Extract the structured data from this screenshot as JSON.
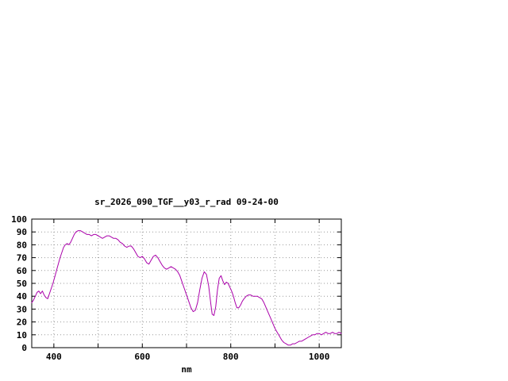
{
  "window": {
    "background": "#ffffff"
  },
  "chart_data": {
    "type": "line",
    "title": "sr_2026_090_TGF__y03_r_rad 09-24-00",
    "xlabel": "nm",
    "ylabel": "",
    "xlim": [
      350,
      1050
    ],
    "ylim": [
      0,
      100
    ],
    "x_tick_label_values": [
      400,
      600,
      800,
      1000
    ],
    "x_grid_values": [
      400,
      500,
      600,
      700,
      800,
      900,
      1000
    ],
    "y_tick_values": [
      0,
      10,
      20,
      30,
      40,
      50,
      60,
      70,
      80,
      90,
      100
    ],
    "grid": true,
    "legend": "none",
    "line_color": "#aa00aa",
    "grid_color": "#999999",
    "border_color": "#000000",
    "series": [
      {
        "name": "sr_2026_090_TGF__y03_r_rad",
        "points": [
          [
            350,
            35
          ],
          [
            354,
            37
          ],
          [
            358,
            40
          ],
          [
            362,
            43
          ],
          [
            366,
            44
          ],
          [
            370,
            42
          ],
          [
            374,
            44
          ],
          [
            378,
            41
          ],
          [
            382,
            39
          ],
          [
            386,
            38
          ],
          [
            390,
            42
          ],
          [
            394,
            46
          ],
          [
            398,
            50
          ],
          [
            402,
            55
          ],
          [
            406,
            60
          ],
          [
            410,
            65
          ],
          [
            414,
            70
          ],
          [
            418,
            74
          ],
          [
            422,
            78
          ],
          [
            426,
            80
          ],
          [
            430,
            81
          ],
          [
            434,
            80
          ],
          [
            438,
            82
          ],
          [
            442,
            85
          ],
          [
            446,
            88
          ],
          [
            450,
            90
          ],
          [
            455,
            91
          ],
          [
            460,
            91
          ],
          [
            465,
            90
          ],
          [
            470,
            89
          ],
          [
            475,
            88
          ],
          [
            480,
            88
          ],
          [
            485,
            87
          ],
          [
            490,
            88
          ],
          [
            495,
            88
          ],
          [
            500,
            87
          ],
          [
            505,
            86
          ],
          [
            510,
            85
          ],
          [
            515,
            86
          ],
          [
            520,
            87
          ],
          [
            525,
            87
          ],
          [
            530,
            86
          ],
          [
            535,
            85
          ],
          [
            540,
            85
          ],
          [
            545,
            84
          ],
          [
            550,
            82
          ],
          [
            555,
            81
          ],
          [
            560,
            79
          ],
          [
            565,
            78
          ],
          [
            570,
            79
          ],
          [
            575,
            79
          ],
          [
            580,
            77
          ],
          [
            585,
            74
          ],
          [
            590,
            71
          ],
          [
            595,
            70
          ],
          [
            600,
            71
          ],
          [
            605,
            69
          ],
          [
            610,
            66
          ],
          [
            615,
            65
          ],
          [
            620,
            68
          ],
          [
            625,
            71
          ],
          [
            630,
            72
          ],
          [
            635,
            70
          ],
          [
            640,
            67
          ],
          [
            645,
            64
          ],
          [
            650,
            62
          ],
          [
            655,
            61
          ],
          [
            660,
            62
          ],
          [
            665,
            63
          ],
          [
            670,
            62
          ],
          [
            675,
            61
          ],
          [
            680,
            59
          ],
          [
            685,
            56
          ],
          [
            690,
            51
          ],
          [
            695,
            46
          ],
          [
            700,
            41
          ],
          [
            705,
            36
          ],
          [
            710,
            31
          ],
          [
            715,
            28
          ],
          [
            720,
            29
          ],
          [
            725,
            35
          ],
          [
            730,
            45
          ],
          [
            735,
            54
          ],
          [
            740,
            59
          ],
          [
            745,
            57
          ],
          [
            750,
            48
          ],
          [
            755,
            34
          ],
          [
            758,
            26
          ],
          [
            762,
            25
          ],
          [
            766,
            32
          ],
          [
            770,
            45
          ],
          [
            774,
            54
          ],
          [
            778,
            56
          ],
          [
            782,
            52
          ],
          [
            786,
            49
          ],
          [
            790,
            51
          ],
          [
            794,
            50
          ],
          [
            798,
            47
          ],
          [
            802,
            44
          ],
          [
            806,
            40
          ],
          [
            810,
            35
          ],
          [
            814,
            31
          ],
          [
            818,
            31
          ],
          [
            822,
            33
          ],
          [
            826,
            36
          ],
          [
            830,
            38
          ],
          [
            835,
            40
          ],
          [
            840,
            41
          ],
          [
            845,
            41
          ],
          [
            850,
            40
          ],
          [
            855,
            40
          ],
          [
            860,
            40
          ],
          [
            865,
            39
          ],
          [
            870,
            38
          ],
          [
            875,
            35
          ],
          [
            880,
            31
          ],
          [
            885,
            27
          ],
          [
            890,
            23
          ],
          [
            895,
            19
          ],
          [
            900,
            15
          ],
          [
            905,
            12
          ],
          [
            910,
            9
          ],
          [
            915,
            6
          ],
          [
            920,
            4
          ],
          [
            925,
            3
          ],
          [
            930,
            2
          ],
          [
            935,
            2
          ],
          [
            940,
            3
          ],
          [
            945,
            3
          ],
          [
            950,
            4
          ],
          [
            955,
            5
          ],
          [
            960,
            5
          ],
          [
            965,
            6
          ],
          [
            970,
            7
          ],
          [
            975,
            8
          ],
          [
            980,
            9
          ],
          [
            985,
            10
          ],
          [
            990,
            10
          ],
          [
            995,
            11
          ],
          [
            1000,
            11
          ],
          [
            1005,
            10
          ],
          [
            1010,
            11
          ],
          [
            1015,
            12
          ],
          [
            1020,
            11
          ],
          [
            1025,
            11
          ],
          [
            1030,
            12
          ],
          [
            1035,
            11
          ],
          [
            1040,
            11
          ],
          [
            1045,
            12
          ],
          [
            1050,
            11
          ]
        ]
      }
    ]
  }
}
